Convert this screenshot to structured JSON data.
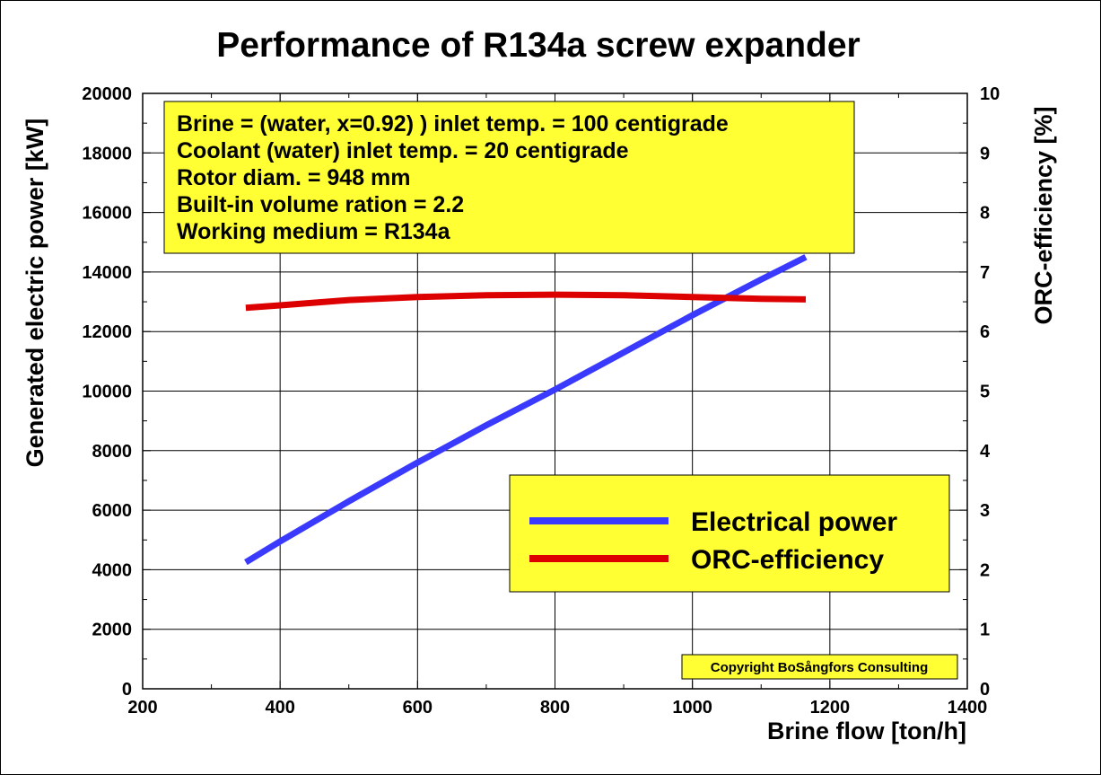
{
  "chart_data": {
    "type": "line",
    "title": "Performance of R134a screw expander",
    "xlabel": "Brine flow [ton/h]",
    "ylabel": "Generated electric power [kW]",
    "y2label": "ORC-efficiency [%]",
    "xlim": [
      200,
      1400
    ],
    "ylim": [
      0,
      20000
    ],
    "y2lim": [
      0,
      10
    ],
    "xticks": [
      200,
      400,
      600,
      800,
      1000,
      1200,
      1400
    ],
    "yticks": [
      0,
      2000,
      4000,
      6000,
      8000,
      10000,
      12000,
      14000,
      16000,
      18000,
      20000
    ],
    "y2ticks": [
      0,
      1,
      2,
      3,
      4,
      5,
      6,
      7,
      8,
      9,
      10
    ],
    "grid": true,
    "legend_position": "bottom-right",
    "series": [
      {
        "name": "Electrical power",
        "axis": "left",
        "color": "#3a3aff",
        "x": [
          350,
          400,
          500,
          600,
          700,
          800,
          900,
          1000,
          1100,
          1165
        ],
        "y": [
          4250,
          4950,
          6300,
          7600,
          8850,
          10050,
          11300,
          12550,
          13750,
          14500
        ]
      },
      {
        "name": "ORC-efficiency",
        "axis": "right",
        "color": "#dd0000",
        "x": [
          350,
          400,
          500,
          600,
          700,
          800,
          900,
          1000,
          1100,
          1165
        ],
        "y": [
          6.4,
          6.44,
          6.53,
          6.58,
          6.61,
          6.62,
          6.61,
          6.58,
          6.55,
          6.54
        ]
      }
    ],
    "annotations": [
      "Brine = (water, x=0.92) ) inlet temp. = 100 centigrade",
      "Coolant (water) inlet temp. = 20 centigrade",
      "Rotor diam. = 948 mm",
      "Built-in volume ration = 2.2",
      "Working medium = R134a"
    ],
    "copyright": "Copyright BoSångfors Consulting",
    "box_color": "#ffff33"
  }
}
